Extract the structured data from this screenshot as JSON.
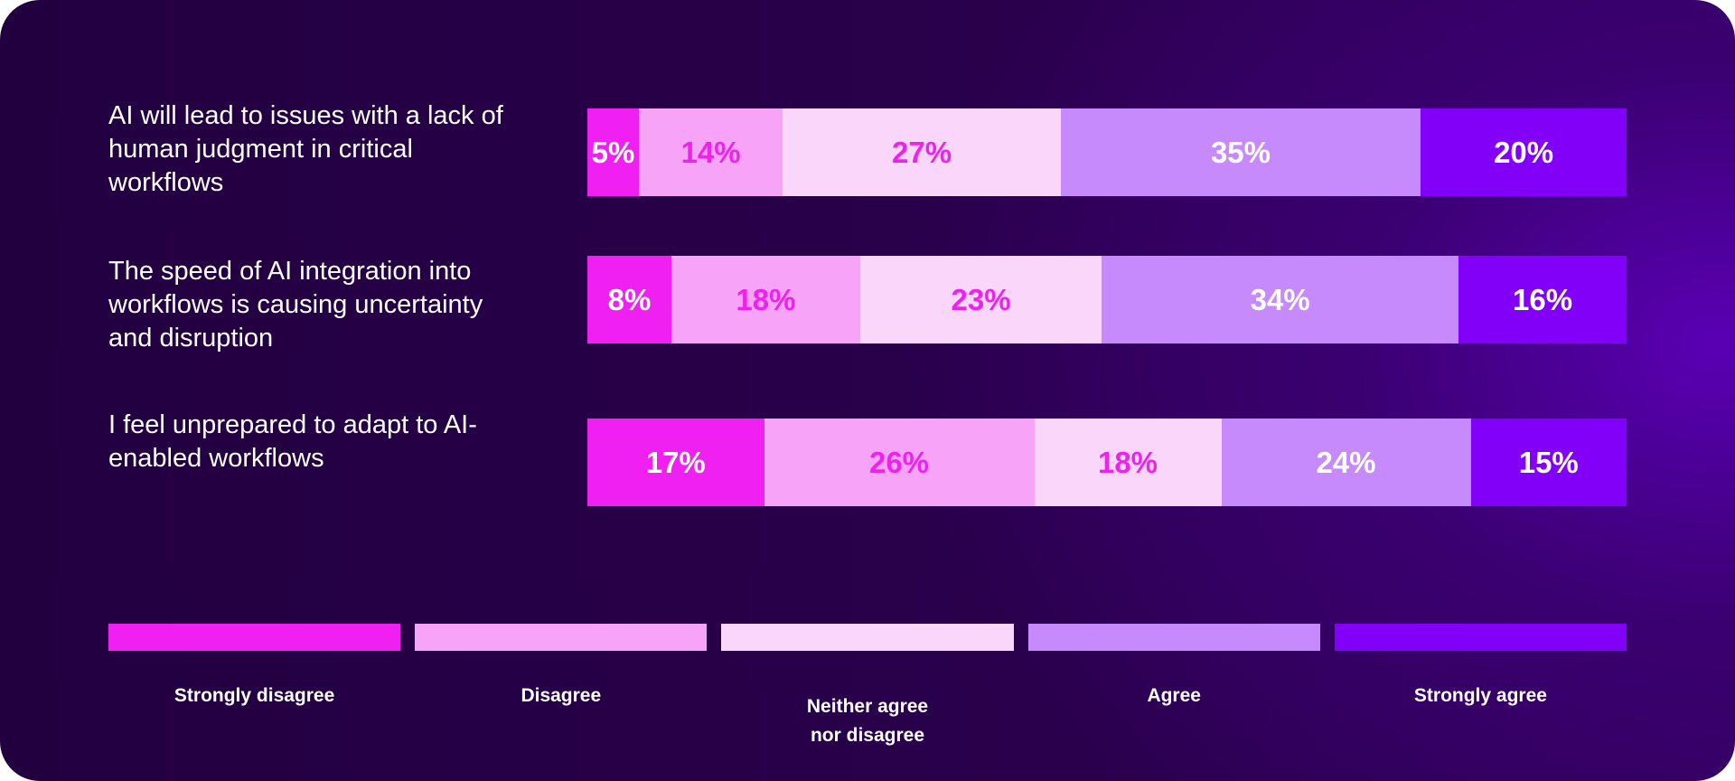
{
  "chart_data": {
    "type": "bar",
    "orientation": "horizontal-stacked-100",
    "categories": [
      "AI will lead to issues with a lack of human judgment in critical workflows",
      "The speed of AI integration into workflows is causing uncertainty and disruption",
      "I feel unprepared to adapt to AI-enabled workflows"
    ],
    "series": [
      {
        "name": "Strongly disagree",
        "color": "#f020f2",
        "text_color": "#ffffff",
        "values": [
          5,
          8,
          17
        ]
      },
      {
        "name": "Disagree",
        "color": "#f7a4f8",
        "text_color": "#ee22ee",
        "values": [
          14,
          18,
          26
        ]
      },
      {
        "name": "Neither agree nor disagree",
        "color": "#fad6fa",
        "text_color": "#ee22ee",
        "values": [
          27,
          23,
          18
        ]
      },
      {
        "name": "Agree",
        "color": "#c68afc",
        "text_color": "#ffffff",
        "values": [
          35,
          34,
          24
        ]
      },
      {
        "name": "Strongly agree",
        "color": "#8300f8",
        "text_color": "#ffffff",
        "values": [
          20,
          16,
          15
        ]
      }
    ],
    "value_suffix": "%",
    "legend_position": "bottom",
    "grid": false
  }
}
